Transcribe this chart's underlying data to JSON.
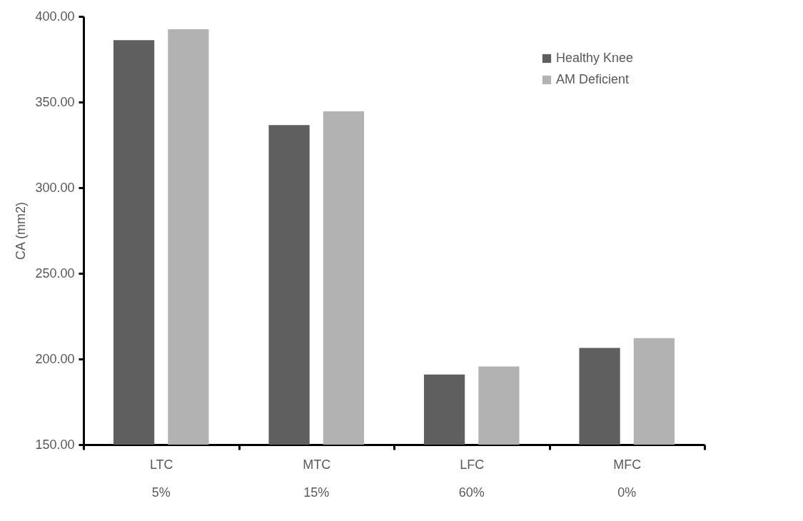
{
  "chart_data": {
    "type": "bar",
    "ylabel": "CA (mm2)",
    "categories": [
      "LTC",
      "MTC",
      "LFC",
      "MFC"
    ],
    "series": [
      {
        "name": "Healthy Knee",
        "color": "#5f5f5f",
        "values": [
          386.1,
          336.6,
          190.9,
          206.5
        ]
      },
      {
        "name": "AM Deficient",
        "color": "#b2b2b2",
        "values": [
          392.5,
          344.6,
          195.6,
          212.2
        ]
      }
    ],
    "annotations": [
      "5%",
      "15%",
      "60%",
      "0%"
    ],
    "ylim": [
      150,
      400
    ],
    "yticks": [
      {
        "value": 150,
        "label": "150.00"
      },
      {
        "value": 200,
        "label": "200.00"
      },
      {
        "value": 250,
        "label": "250.00"
      },
      {
        "value": 300,
        "label": "300.00"
      },
      {
        "value": 350,
        "label": "350.00"
      },
      {
        "value": 400,
        "label": "400.00"
      }
    ],
    "grid": false,
    "legend": "top right"
  }
}
